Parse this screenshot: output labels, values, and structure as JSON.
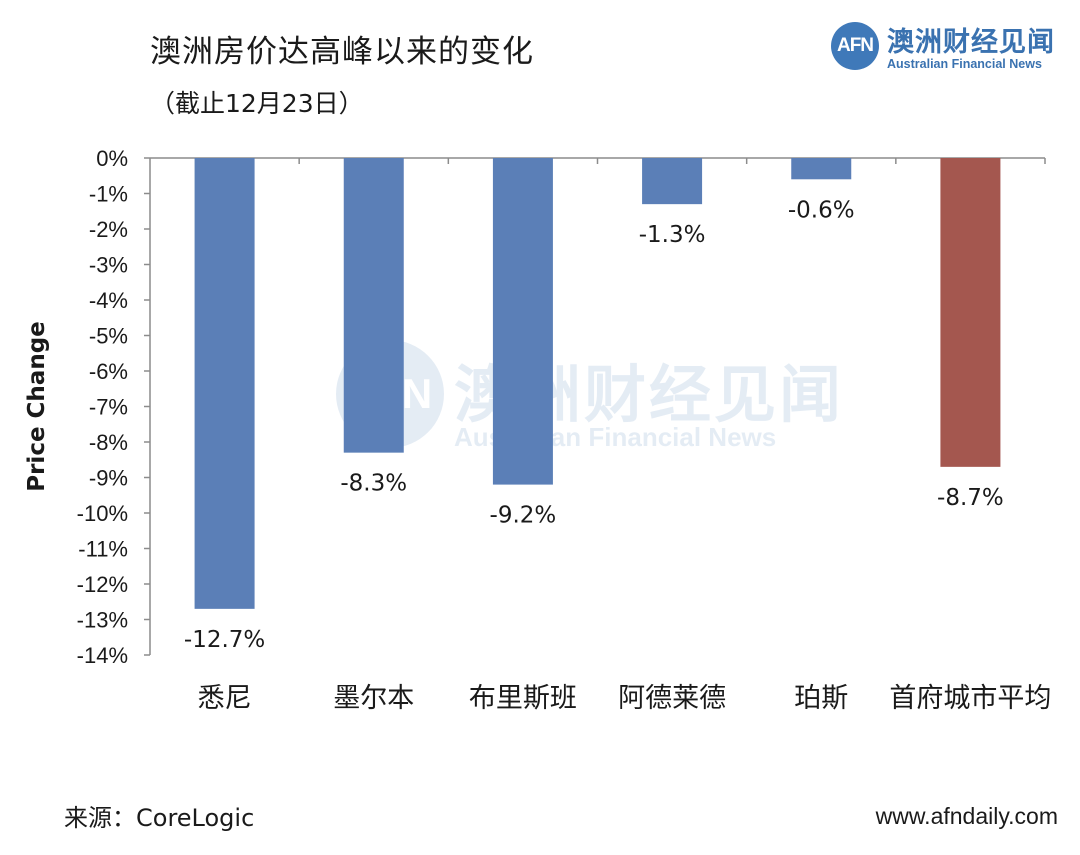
{
  "header": {
    "title": "澳洲房价达高峰以来的变化",
    "subtitle": "（截止12月23日）"
  },
  "logo": {
    "mark": "AFN",
    "name_cn": "澳洲财经见闻",
    "name_en": "Australian Financial News"
  },
  "footer": {
    "source": "来源：CoreLogic",
    "website": "www.afndaily.com"
  },
  "colors": {
    "bar_city": "#5b7fb7",
    "bar_average": "#a4574f",
    "axis": "#8c8c8c",
    "brand": "#3a72b0"
  },
  "chart_data": {
    "type": "bar",
    "title": "澳洲房价达高峰以来的变化",
    "subtitle": "（截止12月23日）",
    "xlabel": "",
    "ylabel": "Price Change",
    "categories": [
      "悉尼",
      "墨尔本",
      "布里斯班",
      "阿德莱德",
      "珀斯",
      "首府城市平均"
    ],
    "values": [
      -12.7,
      -8.3,
      -9.2,
      -1.3,
      -0.6,
      -8.7
    ],
    "data_labels": [
      "-12.7%",
      "-8.3%",
      "-9.2%",
      "-1.3%",
      "-0.6%",
      "-8.7%"
    ],
    "highlight_index": 5,
    "ylim": [
      -14,
      0
    ],
    "yticks": [
      "0%",
      "-1%",
      "-2%",
      "-3%",
      "-4%",
      "-5%",
      "-6%",
      "-7%",
      "-8%",
      "-9%",
      "-10%",
      "-11%",
      "-12%",
      "-13%",
      "-14%"
    ],
    "grid": false,
    "legend": "none"
  }
}
